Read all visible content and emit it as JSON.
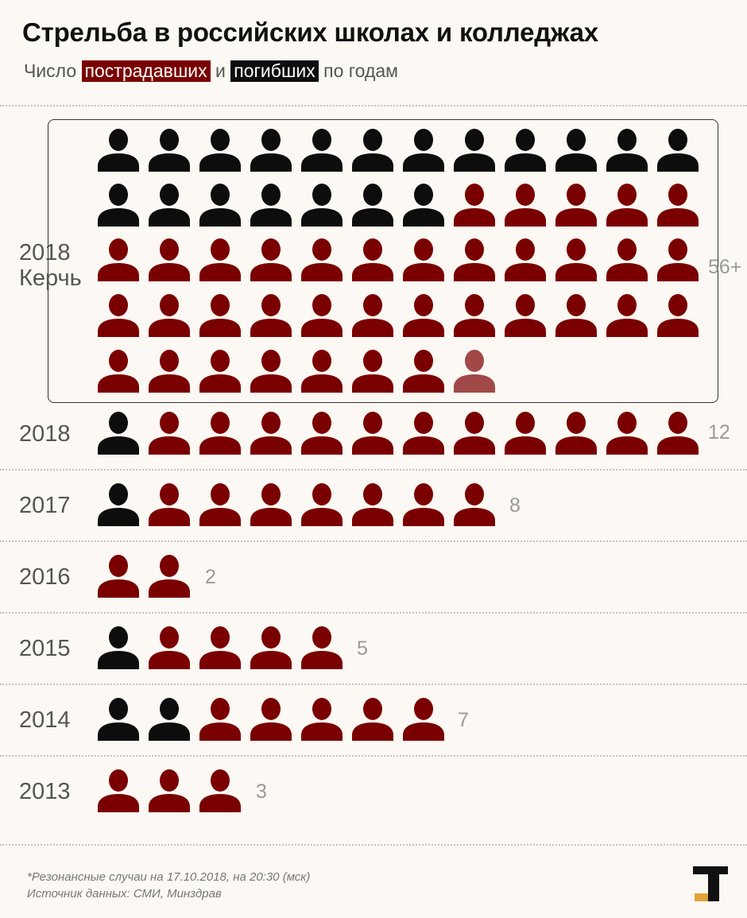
{
  "title": "Стрельба в российских школах и колледжах",
  "subtitle": {
    "prefix": "Число",
    "injured_label": "пострадавших",
    "and": "и",
    "killed_label": "погибших",
    "suffix": "по годам"
  },
  "colors": {
    "injured": "#7a0000",
    "killed": "#0d0d0d",
    "background": "#fcf8f3"
  },
  "chart_data": {
    "type": "pictogram",
    "title": "Стрельба в российских школах и колледжах",
    "rows": [
      {
        "label": "2018",
        "sublabel": "Керчь",
        "killed": 19,
        "injured": 37,
        "total_label": "56+",
        "open_ended": true
      },
      {
        "label": "2018",
        "killed": 1,
        "injured": 11,
        "total_label": "12"
      },
      {
        "label": "2017",
        "killed": 1,
        "injured": 7,
        "total_label": "8"
      },
      {
        "label": "2016",
        "killed": 0,
        "injured": 2,
        "total_label": "2"
      },
      {
        "label": "2015",
        "killed": 1,
        "injured": 4,
        "total_label": "5"
      },
      {
        "label": "2014",
        "killed": 2,
        "injured": 5,
        "total_label": "7"
      },
      {
        "label": "2013",
        "killed": 0,
        "injured": 3,
        "total_label": "3"
      }
    ],
    "legend": [
      {
        "name": "пострадавших",
        "color": "#7a0000"
      },
      {
        "name": "погибших",
        "color": "#0d0d0d"
      }
    ]
  },
  "footnote": {
    "line1": "*Резонансные случаи на 17.10.2018, на 20:30 (мск)",
    "line2": "Источник данных: СМИ, Минздрав"
  },
  "logo": {
    "icon": "publisher-logo-icon"
  }
}
